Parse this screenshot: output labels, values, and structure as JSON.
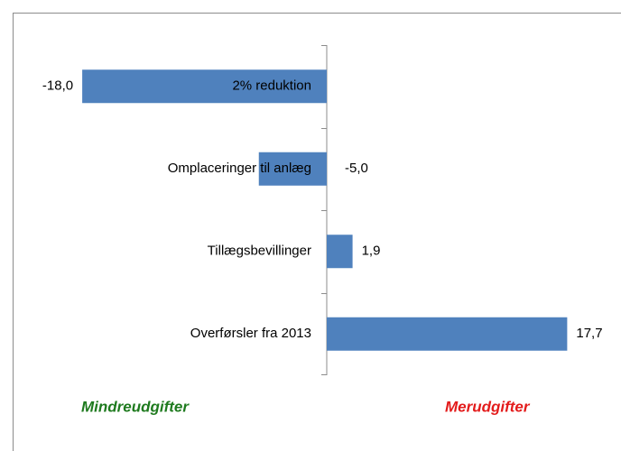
{
  "chart_data": {
    "type": "hbar",
    "categories": [
      "2% reduktion",
      "Omplaceringer til anlæg",
      "Tillægsbevillinger",
      "Overførsler fra 2013"
    ],
    "values": [
      -18.0,
      -5.0,
      1.9,
      17.7
    ],
    "value_labels": [
      "-18,0",
      "-5,0",
      "1,9",
      "17,7"
    ],
    "color": "#4f81bd",
    "xlim": [
      -20,
      20
    ],
    "annotations": [
      {
        "text": "Mindreudgifter",
        "color": "#1e7a1e"
      },
      {
        "text": "Merudgifter",
        "color": "#e31b1b"
      }
    ]
  }
}
